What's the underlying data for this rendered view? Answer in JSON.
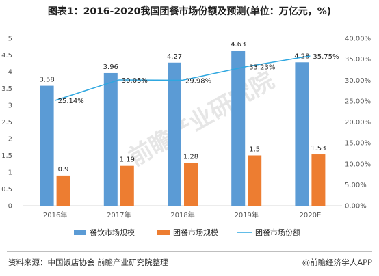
{
  "title": "图表1：2016-2020我国团餐市场份额及预测(单位：万亿元，%)",
  "watermark": "前瞻产业研究院",
  "footer": {
    "source": "资料来源：中国饭店协会 前瞻产业研究院整理",
    "brand": "@前瞻经济学人APP"
  },
  "colors": {
    "series1": "#5b9bd5",
    "series2": "#ed7d31",
    "line": "#2ea7e0"
  },
  "chart_data": {
    "type": "bar",
    "title": "图表1：2016-2020我国团餐市场份额及预测(单位：万亿元，%)",
    "categories": [
      "2016年",
      "2017年",
      "2018年",
      "2019年",
      "2020E"
    ],
    "series": [
      {
        "name": "餐饮市场规模",
        "type": "bar",
        "axis": "left",
        "values": [
          3.58,
          3.96,
          4.27,
          4.63,
          4.28
        ],
        "labels": [
          "3.58",
          "3.96",
          "4.27",
          "4.63",
          "4.28"
        ]
      },
      {
        "name": "团餐市场规模",
        "type": "bar",
        "axis": "left",
        "values": [
          0.9,
          1.19,
          1.28,
          1.5,
          1.53
        ],
        "labels": [
          "0.9",
          "1.19",
          "1.28",
          "1.5",
          "1.53"
        ]
      },
      {
        "name": "团餐市场份额",
        "type": "line",
        "axis": "right",
        "values": [
          25.14,
          30.05,
          29.98,
          33.23,
          35.75
        ],
        "labels": [
          "25.14%",
          "30.05%",
          "29.98%",
          "33.23%",
          "35.75%"
        ]
      }
    ],
    "left_axis": {
      "min": 0,
      "max": 5,
      "ticks": [
        "0",
        "0.5",
        "1",
        "1.5",
        "2",
        "2.5",
        "3",
        "3.5",
        "4",
        "4.5",
        "5"
      ]
    },
    "right_axis": {
      "min": 0,
      "max": 40,
      "ticks": [
        "0.00%",
        "5.00%",
        "10.00%",
        "15.00%",
        "20.00%",
        "25.00%",
        "30.00%",
        "35.00%",
        "40.00%"
      ]
    },
    "grid": false,
    "legend_position": "bottom"
  }
}
